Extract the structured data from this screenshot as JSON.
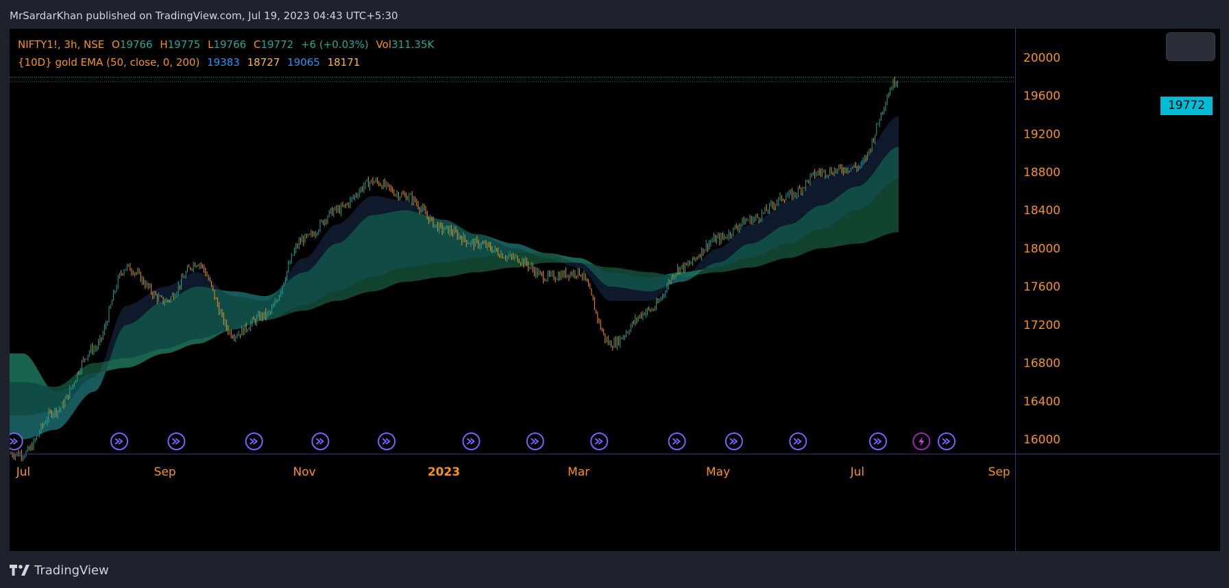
{
  "header": {
    "publisher_line": "MrSardarKhan published on TradingView.com, Jul 19, 2023 04:43 UTC+5:30"
  },
  "legend": {
    "symbol": "NIFTY1!, 3h, NSE",
    "open_label": "O",
    "open": "19766",
    "high_label": "H",
    "high": "19775",
    "low_label": "L",
    "low": "19766",
    "close_label": "C",
    "close": "19772",
    "change": "+6 (+0.03%)",
    "vol_label": "Vol",
    "vol": "311.35K",
    "indicator_name": "{10D} gold EMA (50, close, 0, 200)",
    "indicator_values": [
      "19383",
      "18727",
      "19065",
      "18171"
    ]
  },
  "price_tag": "19772",
  "footer": {
    "brand": "TradingView"
  },
  "colors": {
    "background": "#000000",
    "frame": "#1e222d",
    "up_candle": "#26a69a",
    "down_candle": "#f7931a",
    "price_line": "#00bcd4",
    "bull_ribbon": "#26a69a",
    "bear_ribbon": "#f7931a",
    "event_icon": "#7b61ff",
    "axis_label": "#f7931a"
  },
  "icons": {
    "events": "fast-forward-circle-icon",
    "last_event": "lightning-circle-icon",
    "logo": "tradingview-logo-icon"
  },
  "chart_data": {
    "type": "line",
    "title": "",
    "symbol": "NIFTY1!",
    "interval": "3h",
    "ylim": [
      15850,
      20300
    ],
    "y_ticks": [
      16000,
      16400,
      16800,
      17200,
      17600,
      18000,
      18400,
      18800,
      19200,
      19600,
      20000
    ],
    "x_tick_labels": [
      "Jul",
      "Sep",
      "Nov",
      "2023",
      "Mar",
      "May",
      "Jul",
      "Sep"
    ],
    "x_dates": [
      "2022-07-01",
      "2022-07-15",
      "2022-08-01",
      "2022-08-15",
      "2022-09-01",
      "2022-09-15",
      "2022-10-01",
      "2022-10-15",
      "2022-11-01",
      "2022-11-15",
      "2022-12-01",
      "2022-12-15",
      "2023-01-01",
      "2023-01-15",
      "2023-02-01",
      "2023-02-15",
      "2023-03-01",
      "2023-03-15",
      "2023-04-01",
      "2023-04-15",
      "2023-05-01",
      "2023-05-15",
      "2023-06-01",
      "2023-06-15",
      "2023-07-01",
      "2023-07-19"
    ],
    "series": [
      {
        "name": "NIFTY1!",
        "values": [
          15850,
          16300,
          16950,
          17800,
          17450,
          17850,
          17100,
          17300,
          18100,
          18400,
          18700,
          18550,
          18200,
          18050,
          17900,
          17700,
          17750,
          17000,
          17350,
          17800,
          18100,
          18300,
          18550,
          18800,
          18850,
          19772
        ]
      },
      {
        "values": [
          16250,
          16300,
          16650,
          17400,
          17600,
          17750,
          17500,
          17450,
          17900,
          18250,
          18550,
          18500,
          18300,
          18150,
          18000,
          17900,
          17800,
          17450,
          17450,
          17700,
          18000,
          18250,
          18500,
          18750,
          18900,
          19383
        ]
      },
      {
        "values": [
          16000,
          16100,
          16500,
          17200,
          17450,
          17600,
          17550,
          17500,
          17750,
          18050,
          18350,
          18400,
          18300,
          18150,
          18050,
          17950,
          17850,
          17600,
          17550,
          17650,
          17850,
          18050,
          18250,
          18450,
          18650,
          19065
        ]
      },
      {
        "values": [
          16900,
          16500,
          16700,
          16750,
          16900,
          17000,
          17150,
          17250,
          17400,
          17550,
          17700,
          17800,
          17850,
          17900,
          17950,
          17950,
          17900,
          17750,
          17700,
          17750,
          17800,
          17900,
          18050,
          18200,
          18400,
          18727
        ]
      },
      {
        "values": [
          16600,
          16550,
          16800,
          16850,
          16950,
          17050,
          17150,
          17250,
          17350,
          17450,
          17550,
          17650,
          17700,
          17750,
          17800,
          17850,
          17850,
          17800,
          17750,
          17700,
          17750,
          17800,
          17900,
          18000,
          18050,
          18171
        ]
      }
    ],
    "current_price": 19772,
    "grid": false,
    "legend": "top-left"
  }
}
